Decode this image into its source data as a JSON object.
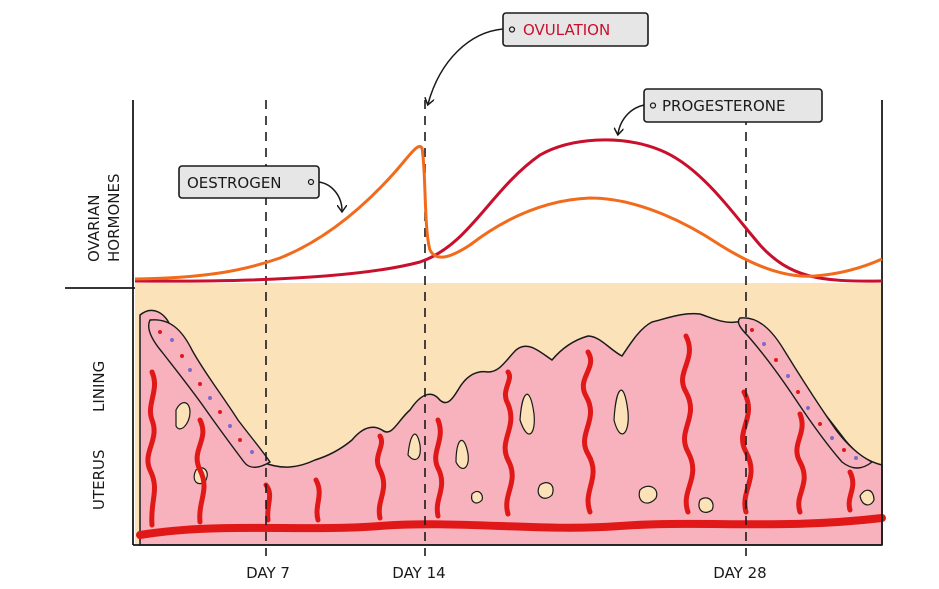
{
  "labels": {
    "ovulation": "OVULATION",
    "progesterone": "PROGESTERONE",
    "oestrogen": "OESTROGEN",
    "ovarian": "OVARIAN",
    "hormones": "HORMONES",
    "uterus": "UTERUS",
    "lining": "LINING",
    "day7": "DAY 7",
    "day14": "DAY 14",
    "day28": "DAY 28"
  },
  "colors": {
    "oestrogen": "#f26a1b",
    "progesterone": "#c8102e",
    "ovulation_text": "#c8102e",
    "lining_background": "#fbe2b8",
    "lining_tissue": "#f7b2bd",
    "blood_vessel": "#e01818",
    "tag_fill": "#e6e6e6"
  }
}
